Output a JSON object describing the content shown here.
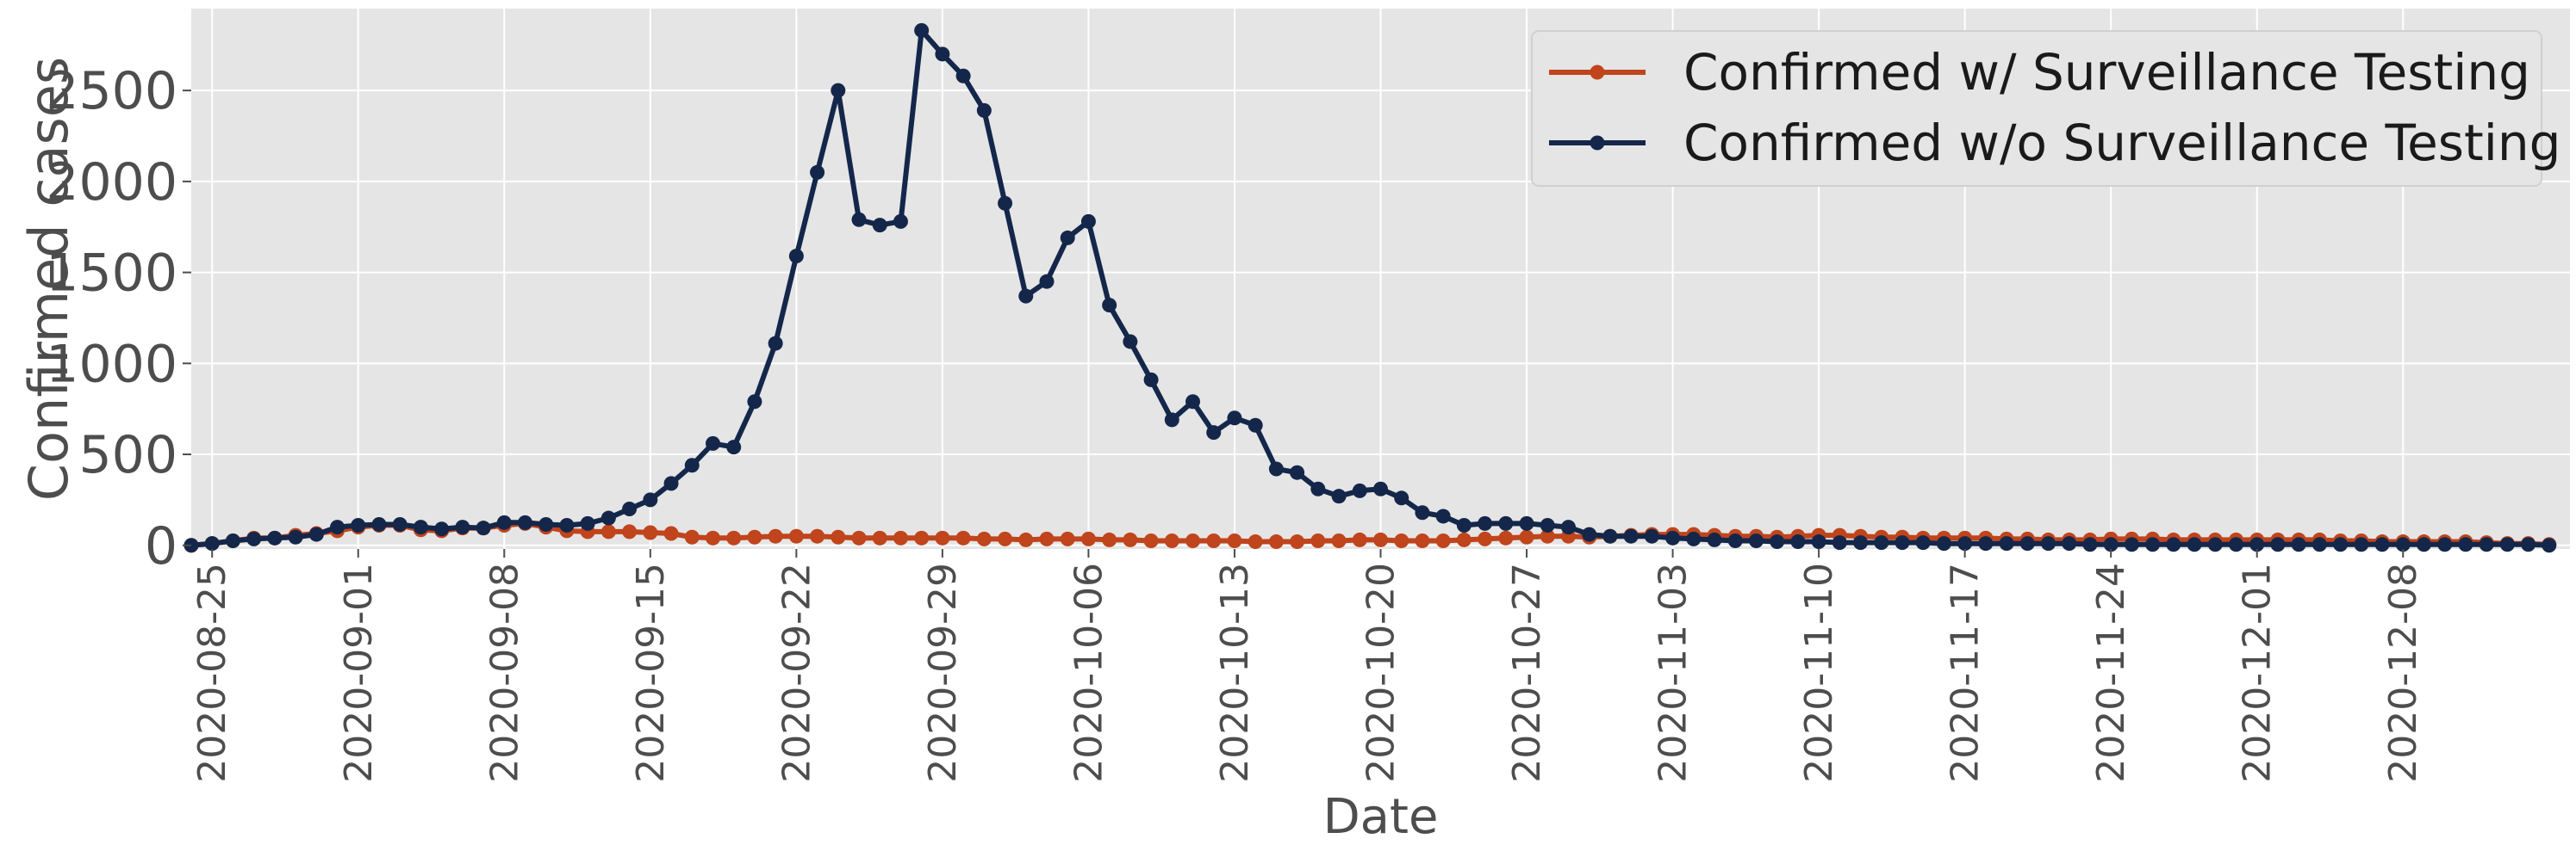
{
  "chart_data": {
    "type": "line",
    "xlabel": "Date",
    "ylabel": "Confirmed cases",
    "ylim": [
      -20,
      2950
    ],
    "xlim": [
      "2020-08-24",
      "2020-12-16"
    ],
    "yticks": [
      0,
      500,
      1000,
      1500,
      2000,
      2500
    ],
    "xticks": [
      "2020-08-25",
      "2020-09-01",
      "2020-09-08",
      "2020-09-15",
      "2020-09-22",
      "2020-09-29",
      "2020-10-06",
      "2020-10-13",
      "2020-10-20",
      "2020-10-27",
      "2020-11-03",
      "2020-11-10",
      "2020-11-17",
      "2020-11-24",
      "2020-12-01",
      "2020-12-08"
    ],
    "grid": true,
    "legend_position": "top-right",
    "x_start_date": "2020-08-24",
    "series": [
      {
        "name": "Confirmed w/ Surveillance Testing",
        "color": "#c0441c",
        "values": [
          0,
          10,
          25,
          40,
          40,
          55,
          65,
          80,
          100,
          110,
          110,
          85,
          80,
          95,
          95,
          110,
          120,
          100,
          80,
          75,
          75,
          75,
          70,
          65,
          45,
          40,
          40,
          45,
          50,
          50,
          50,
          45,
          40,
          40,
          40,
          40,
          40,
          40,
          35,
          35,
          30,
          35,
          35,
          35,
          30,
          30,
          25,
          25,
          25,
          25,
          25,
          20,
          20,
          20,
          25,
          25,
          30,
          30,
          25,
          25,
          25,
          30,
          35,
          40,
          45,
          50,
          50,
          45,
          50,
          55,
          60,
          60,
          60,
          55,
          50,
          50,
          45,
          50,
          55,
          55,
          50,
          45,
          45,
          40,
          40,
          40,
          40,
          35,
          35,
          30,
          30,
          30,
          35,
          35,
          35,
          30,
          30,
          30,
          30,
          30,
          30,
          30,
          30,
          25,
          25,
          20,
          20,
          20,
          20,
          20,
          15,
          10,
          10,
          5
        ],
        "offset": 0
      },
      {
        "name": "Confirmed w/o Surveillance Testing",
        "color": "#14274a",
        "values": [
          0,
          10,
          25,
          35,
          40,
          45,
          60,
          100,
          110,
          115,
          115,
          100,
          90,
          100,
          95,
          125,
          125,
          115,
          110,
          120,
          150,
          200,
          250,
          340,
          440,
          560,
          540,
          790,
          1110,
          1590,
          2050,
          2500,
          1790,
          1760,
          1780,
          2830,
          2700,
          2580,
          2390,
          1880,
          1370,
          1450,
          1690,
          1780,
          1320,
          1120,
          910,
          690,
          790,
          620,
          700,
          660,
          420,
          400,
          310,
          270,
          300,
          310,
          260,
          180,
          160,
          110,
          120,
          120,
          120,
          110,
          100,
          60,
          50,
          50,
          50,
          40,
          35,
          30,
          25,
          25,
          20,
          20,
          20,
          15,
          15,
          15,
          15,
          15,
          10,
          10,
          10,
          10,
          10,
          10,
          10,
          5,
          5,
          5,
          5,
          5,
          5,
          5,
          5,
          5,
          5,
          5,
          5,
          5,
          5,
          5,
          5,
          5,
          5,
          5,
          5,
          5,
          5,
          0
        ],
        "offset": 0
      }
    ]
  }
}
